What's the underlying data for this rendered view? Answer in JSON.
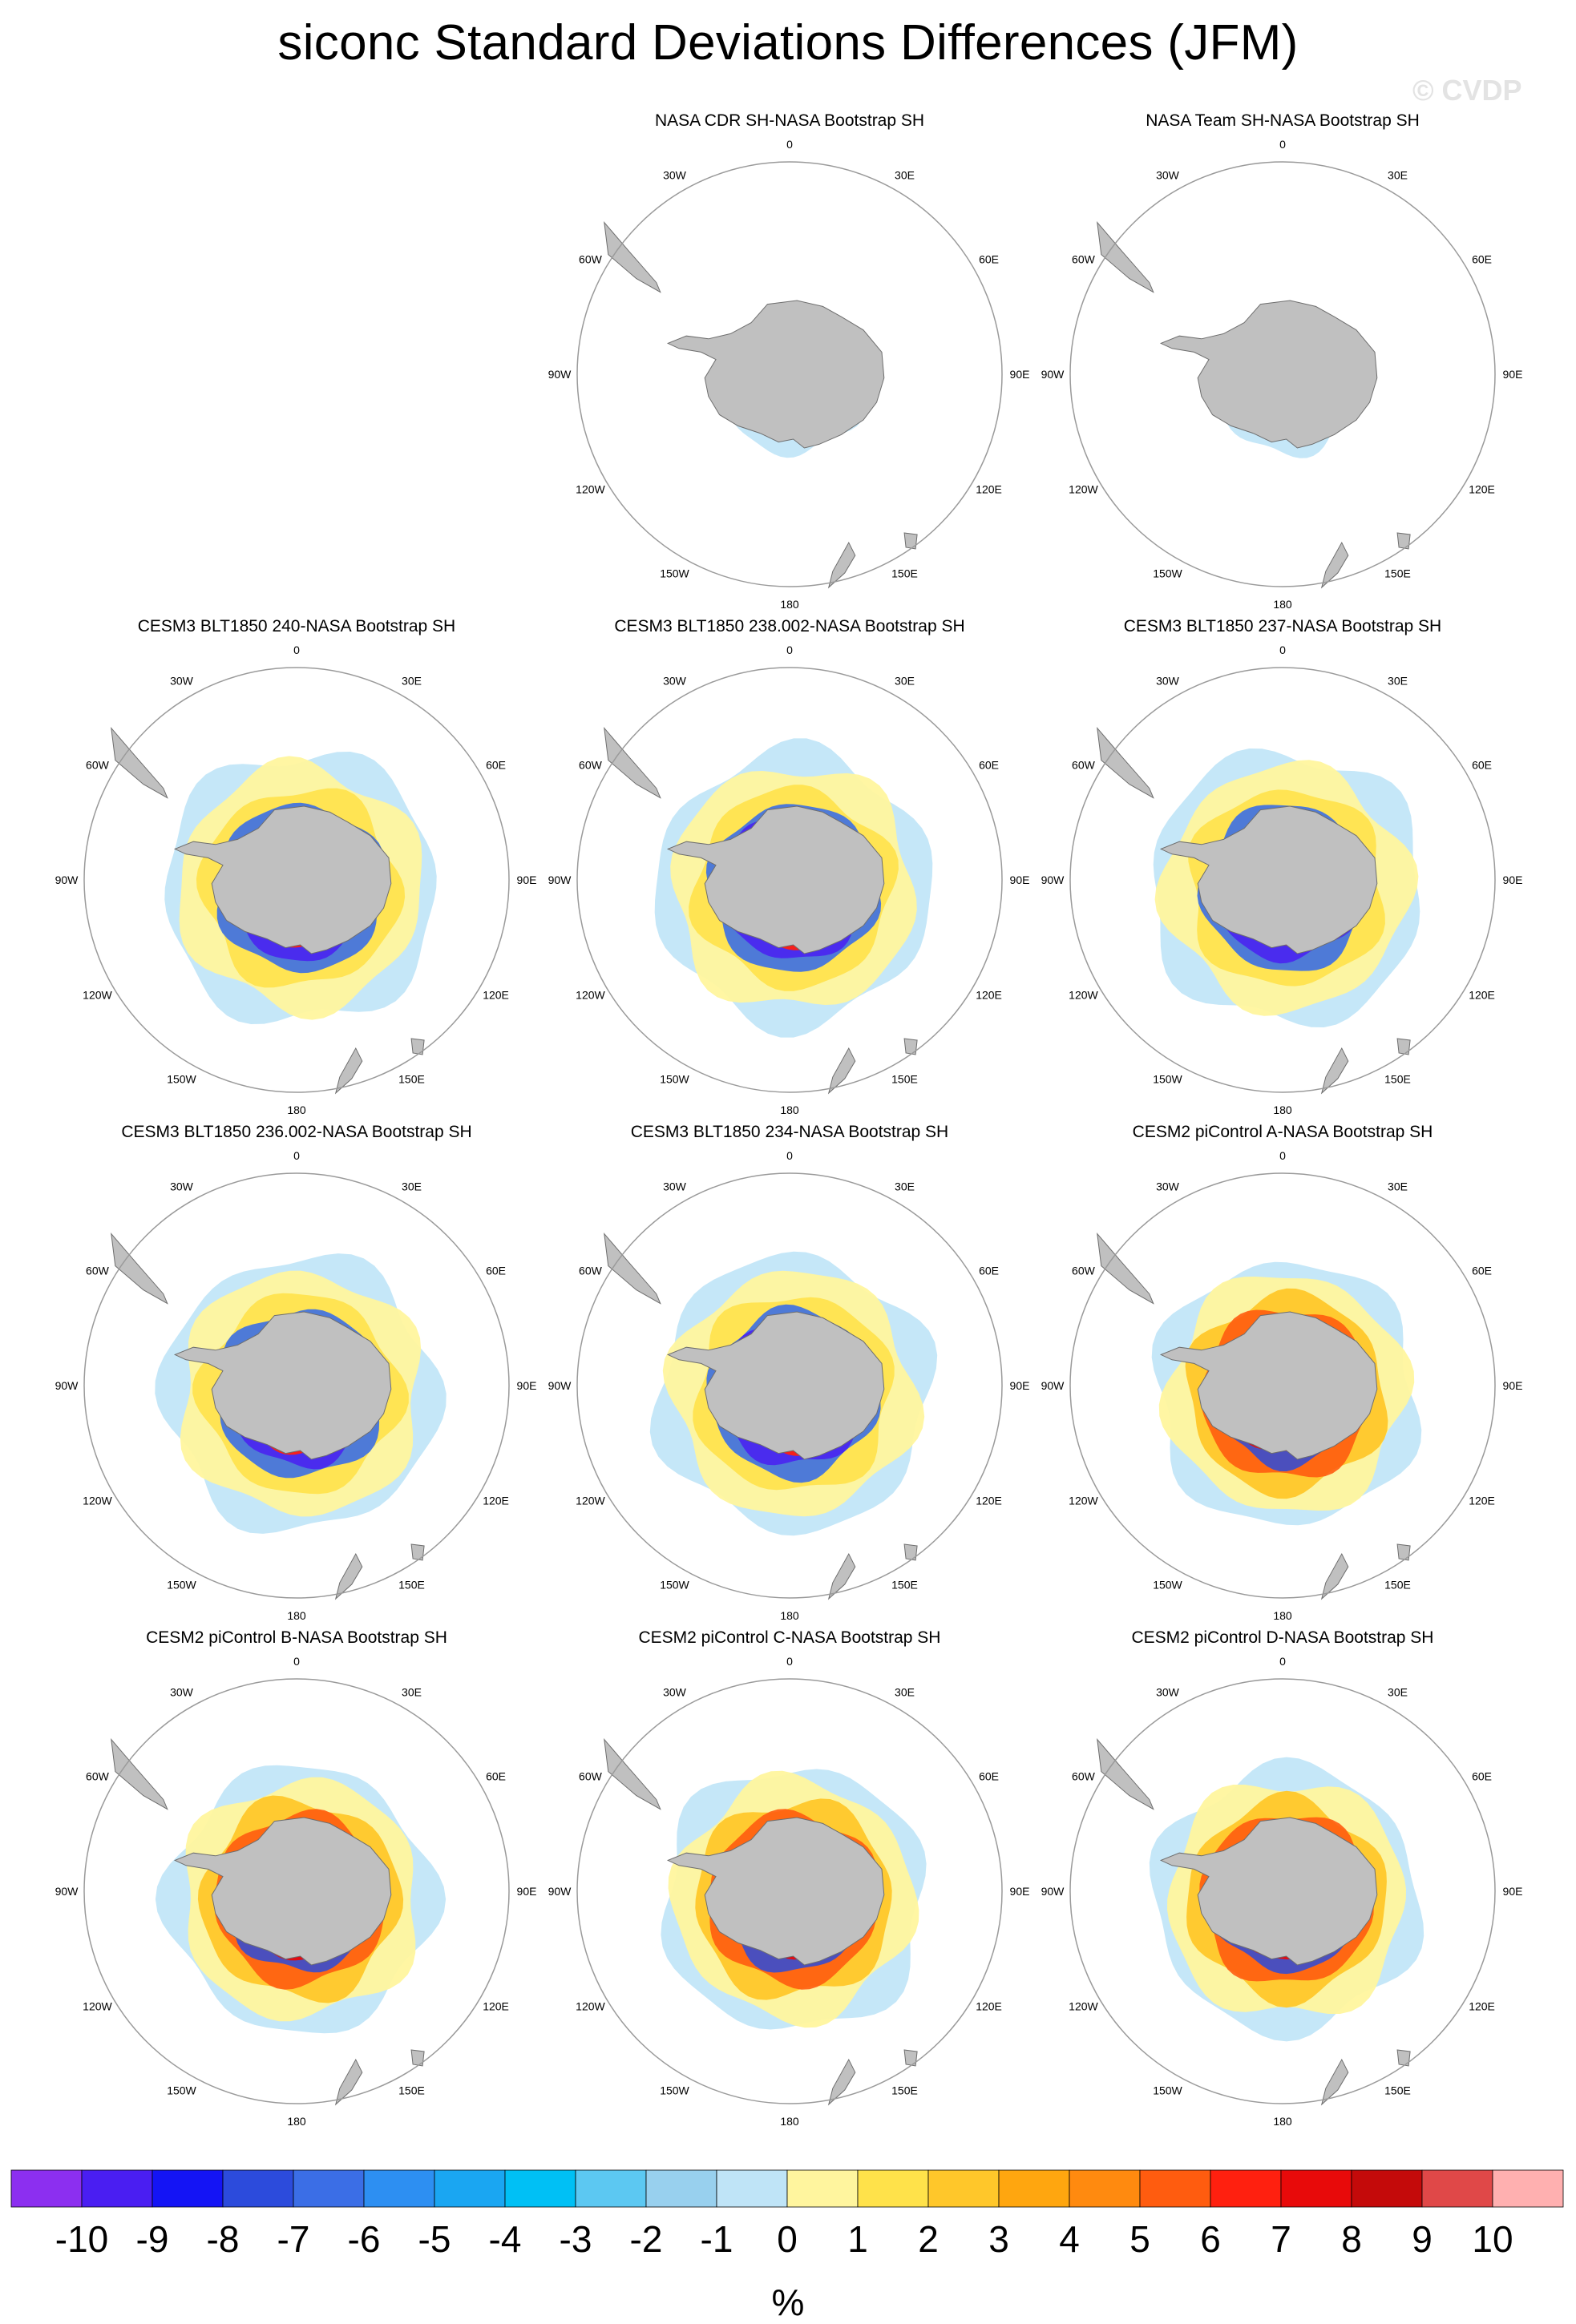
{
  "title": "siconc Standard Deviations Differences (JFM)",
  "copyright": "© CVDP",
  "map_ticks": {
    "top": "0",
    "bottom": "180",
    "left": "90W",
    "right": "90E",
    "upper_left_1": "30W",
    "upper_left_2": "60W",
    "upper_right_1": "30E",
    "upper_right_2": "60E",
    "lower_left_1": "120W",
    "lower_left_2": "150W",
    "lower_right_1": "120E",
    "lower_right_2": "150E"
  },
  "panels": [
    {
      "title": "NASA CDR SH-NASA Bootstrap SH",
      "pattern": "cdr"
    },
    {
      "title": "NASA Team SH-NASA Bootstrap SH",
      "pattern": "team"
    },
    {
      "title": "CESM3 BLT1850 240-NASA Bootstrap SH",
      "pattern": "cesm3"
    },
    {
      "title": "CESM3 BLT1850 238.002-NASA Bootstrap SH",
      "pattern": "cesm3"
    },
    {
      "title": "CESM3 BLT1850 237-NASA Bootstrap SH",
      "pattern": "cesm3"
    },
    {
      "title": "CESM3 BLT1850 236.002-NASA Bootstrap SH",
      "pattern": "cesm3"
    },
    {
      "title": "CESM3 BLT1850 234-NASA Bootstrap SH",
      "pattern": "cesm3"
    },
    {
      "title": "CESM2 piControl A-NASA Bootstrap SH",
      "pattern": "cesm2"
    },
    {
      "title": "CESM2 piControl B-NASA Bootstrap SH",
      "pattern": "cesm2"
    },
    {
      "title": "CESM2 piControl C-NASA Bootstrap SH",
      "pattern": "cesm2"
    },
    {
      "title": "CESM2 piControl D-NASA Bootstrap SH",
      "pattern": "cesm2"
    }
  ],
  "colorbar": {
    "labels": [
      "-10",
      "-9",
      "-8",
      "-7",
      "-6",
      "-5",
      "-4",
      "-3",
      "-2",
      "-1",
      "0",
      "1",
      "2",
      "3",
      "4",
      "5",
      "6",
      "7",
      "8",
      "9",
      "10"
    ],
    "colors": [
      "#8c2ff0",
      "#4a1ef2",
      "#1414f5",
      "#2c4bdc",
      "#3b6ee6",
      "#2d8ff2",
      "#1aa6f2",
      "#00c0f5",
      "#5cc8f2",
      "#98d0ee",
      "#bfe4f7",
      "#fff59e",
      "#ffe24a",
      "#ffc72a",
      "#ffa60f",
      "#ff8a0f",
      "#ff5c0f",
      "#ff200f",
      "#e80a0a",
      "#c40a0a",
      "#e04848",
      "#ffb0b0"
    ],
    "units": "%"
  },
  "colors": {
    "land": "#c0c0c0",
    "ocean": "#ffffff",
    "grid_circle": "#9a9a9a"
  }
}
